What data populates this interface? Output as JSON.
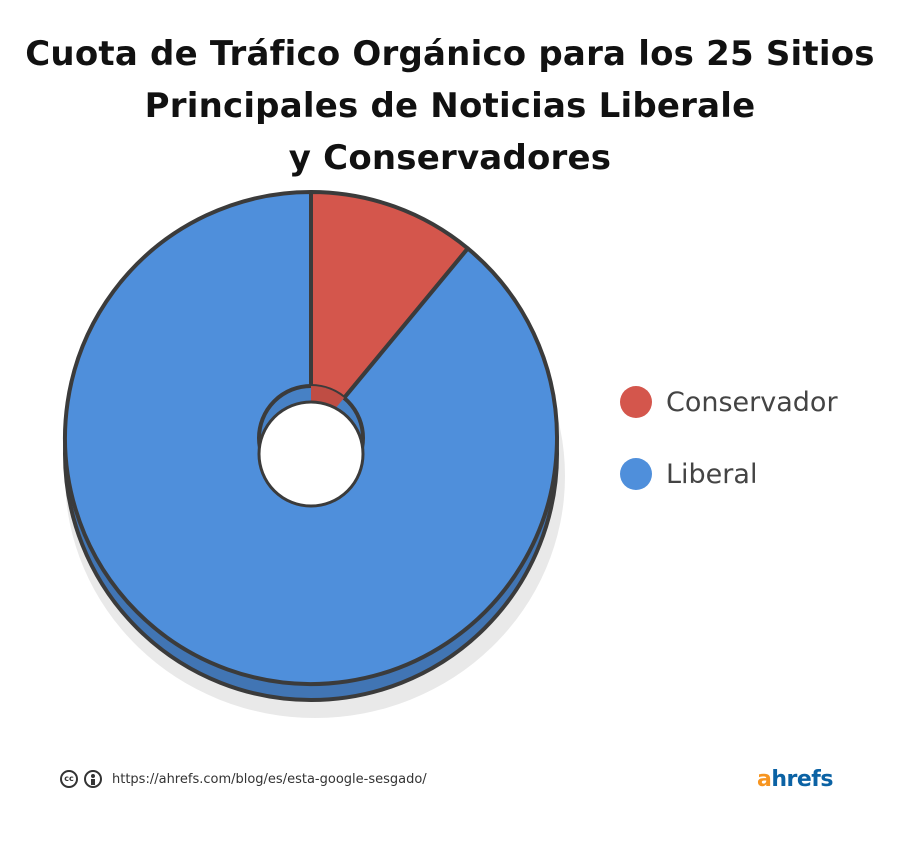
{
  "chart_data": {
    "type": "pie",
    "variant": "donut-3d",
    "title_lines": [
      "Cuota de Tráfico Orgánico para los 25 Sitios",
      "Principales de Noticias Liberale",
      "y Conservadores"
    ],
    "categories": [
      "Conservador",
      "Liberal"
    ],
    "values": [
      11,
      89
    ],
    "unit": "%",
    "colors": {
      "Conservador": "#d4564c",
      "Liberal": "#4f8fdb"
    },
    "legend_position": "right",
    "legend": [
      {
        "label": "Conservador",
        "color": "#d4564c"
      },
      {
        "label": "Liberal",
        "color": "#4f8fdb"
      }
    ]
  },
  "footer": {
    "license_icons": [
      "creative-commons-icon",
      "attribution-icon"
    ],
    "cc_text": "cc",
    "url": "https://ahrefs.com/blog/es/esta-google-sesgado/"
  },
  "brand": {
    "first_letter": "a",
    "rest": "hrefs",
    "first_color": "#f79520",
    "rest_color": "#0b62a4"
  }
}
